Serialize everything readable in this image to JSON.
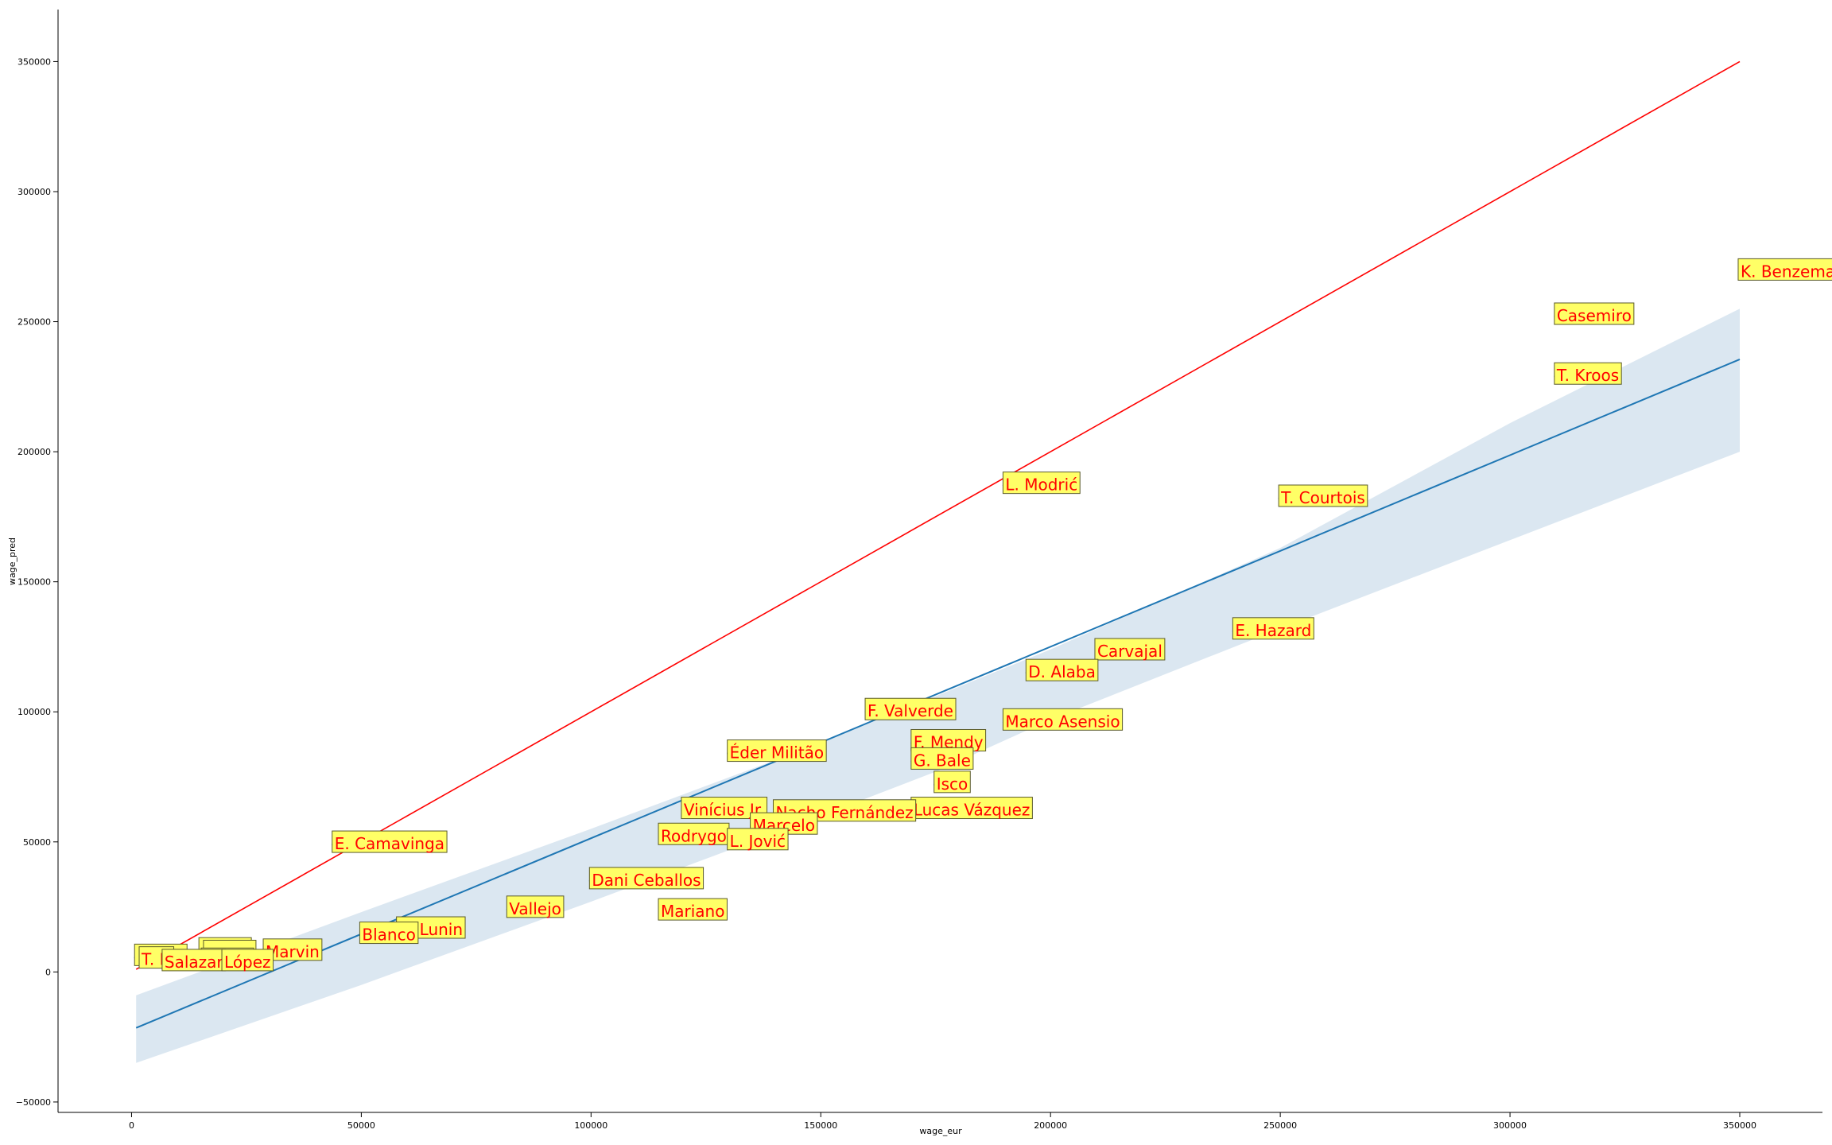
{
  "chart_data": {
    "type": "scatter",
    "title": "",
    "xlabel": "wage_eur",
    "ylabel": "wage_pred",
    "xlim": [
      -16000,
      368000
    ],
    "ylim": [
      -54000,
      370000
    ],
    "xticks": [
      0,
      50000,
      100000,
      150000,
      200000,
      250000,
      300000,
      350000
    ],
    "yticks": [
      -50000,
      0,
      50000,
      100000,
      150000,
      200000,
      250000,
      300000,
      350000
    ],
    "grid": false,
    "colors": {
      "identity_line": "#ff0000",
      "regression_line": "#1f77b4",
      "confidence_band": "#dbe7f1",
      "label_text": "#ff0000",
      "label_box": "#ffff66",
      "label_border": "#5a5a2a"
    },
    "identity_line": {
      "x": [
        1000,
        350000
      ],
      "y": [
        1000,
        350000
      ]
    },
    "regression_line": {
      "x": [
        1000,
        350000
      ],
      "y": [
        -21500,
        235500
      ]
    },
    "confidence_band": {
      "x": [
        1000,
        50000,
        100000,
        150000,
        175000,
        200000,
        250000,
        300000,
        350000
      ],
      "lower": [
        -35000,
        -5000,
        27000,
        60000,
        77000,
        97000,
        132000,
        166000,
        200000
      ],
      "upper": [
        -9000,
        23000,
        55000,
        88000,
        106000,
        124000,
        163000,
        211000,
        255000
      ]
    },
    "points": [
      {
        "label": "K. Benzema",
        "x": 350000,
        "y": 269000
      },
      {
        "label": "Casemiro",
        "x": 310000,
        "y": 252000
      },
      {
        "label": "T. Kroos",
        "x": 310000,
        "y": 229000
      },
      {
        "label": "L. Modrić",
        "x": 190000,
        "y": 187000
      },
      {
        "label": "T. Courtois",
        "x": 250000,
        "y": 182000
      },
      {
        "label": "E. Hazard",
        "x": 240000,
        "y": 131000
      },
      {
        "label": "Carvajal",
        "x": 210000,
        "y": 123000
      },
      {
        "label": "D. Alaba",
        "x": 195000,
        "y": 115000
      },
      {
        "label": "F. Valverde",
        "x": 160000,
        "y": 100000
      },
      {
        "label": "Marco Asensio",
        "x": 190000,
        "y": 96000
      },
      {
        "label": "F. Mendy",
        "x": 170000,
        "y": 88000
      },
      {
        "label": "Éder Militão",
        "x": 130000,
        "y": 84000
      },
      {
        "label": "G. Bale",
        "x": 170000,
        "y": 81000
      },
      {
        "label": "Isco",
        "x": 175000,
        "y": 72000
      },
      {
        "label": "Lucas Vázquez",
        "x": 170000,
        "y": 62000
      },
      {
        "label": "Vinícius Jr.",
        "x": 120000,
        "y": 62000
      },
      {
        "label": "Nacho Fernández",
        "x": 140000,
        "y": 61000
      },
      {
        "label": "Marcelo",
        "x": 135000,
        "y": 56000
      },
      {
        "label": "Rodrygo",
        "x": 115000,
        "y": 52000
      },
      {
        "label": "L. Jović",
        "x": 130000,
        "y": 50000
      },
      {
        "label": "E. Camavinga",
        "x": 44000,
        "y": 49000
      },
      {
        "label": "Dani Ceballos",
        "x": 100000,
        "y": 35000
      },
      {
        "label": "Vallejo",
        "x": 82000,
        "y": 24000
      },
      {
        "label": "Mariano",
        "x": 115000,
        "y": 23000
      },
      {
        "label": "A. Lunin",
        "x": 58000,
        "y": 16000
      },
      {
        "label": "Blanco",
        "x": 50000,
        "y": 14000
      },
      {
        "label": "Marvin",
        "x": 29000,
        "y": 7500
      },
      {
        "label": "",
        "x": 15000,
        "y": 8000
      },
      {
        "label": "",
        "x": 16000,
        "y": 7000
      },
      {
        "label": "",
        "x": 1000,
        "y": 5500
      },
      {
        "label": "T. N",
        "x": 2000,
        "y": 4500
      },
      {
        "label": "",
        "x": 15500,
        "y": 4000
      },
      {
        "label": "Salazar",
        "x": 7000,
        "y": 3500
      },
      {
        "label": "López",
        "x": 20000,
        "y": 3500
      }
    ]
  }
}
